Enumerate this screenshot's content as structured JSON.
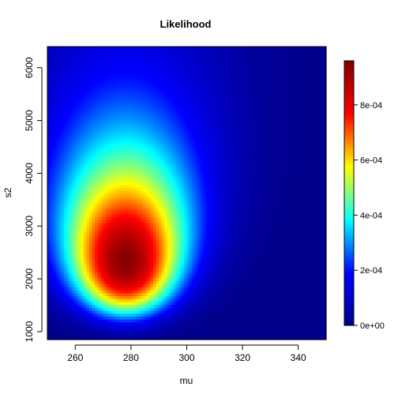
{
  "chart_data": {
    "type": "heatmap",
    "title": "Likelihood",
    "xlabel": "mu",
    "ylabel": "s2",
    "xlim": [
      250,
      350
    ],
    "ylim": [
      850,
      6400
    ],
    "x_ticks": [
      260,
      280,
      300,
      320,
      340
    ],
    "y_ticks": [
      1000,
      2000,
      3000,
      4000,
      5000,
      6000
    ],
    "z_range": [
      0,
      0.00096
    ],
    "peak": {
      "mu": 278,
      "s2": 2350,
      "value": 0.00095
    },
    "colorbar": {
      "ticks": [
        0,
        0.0002,
        0.0004,
        0.0006,
        0.0008
      ],
      "tick_labels": [
        "0e+00",
        "2e-04",
        "4e-04",
        "6e-04",
        "8e-04"
      ],
      "placement": "right"
    },
    "colormap": [
      "#00008b",
      "#0000ff",
      "#00ffff",
      "#ffff00",
      "#ff0000",
      "#800000"
    ],
    "grid": false
  }
}
